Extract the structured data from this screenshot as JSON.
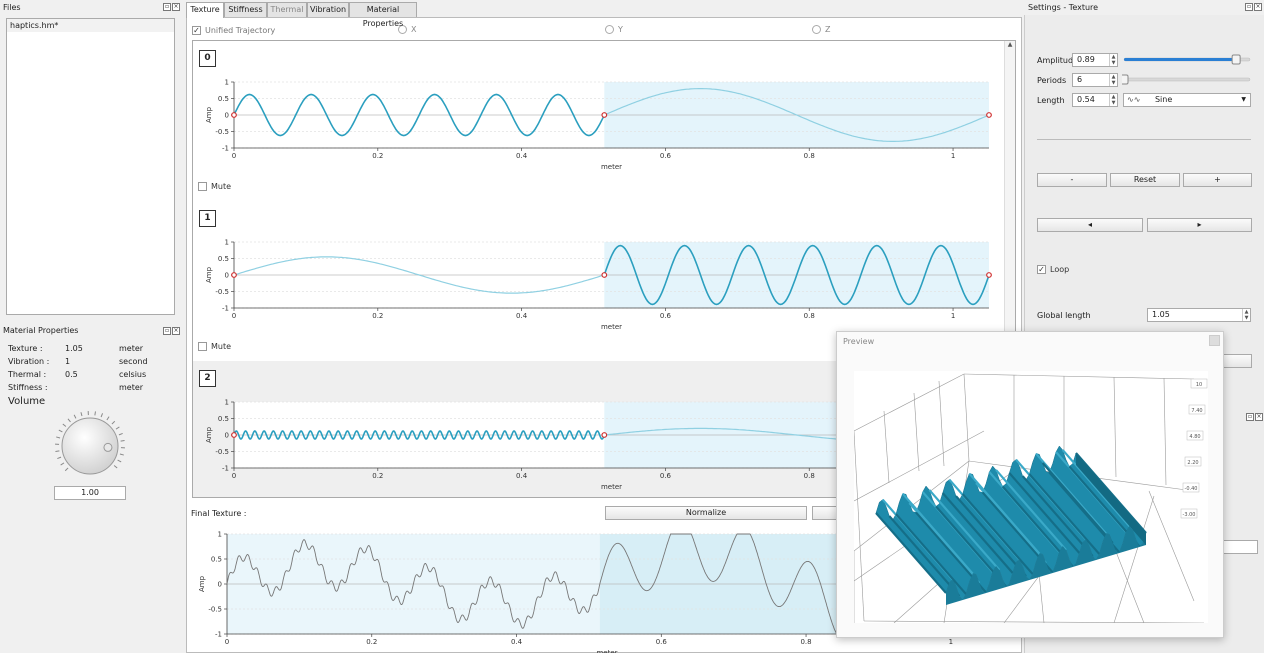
{
  "files_panel": {
    "title": "Files",
    "items": [
      "haptics.hm*"
    ]
  },
  "material_panel": {
    "title": "Material Properties",
    "rows": [
      {
        "label": "Texture :",
        "value": "1.05",
        "unit": "meter"
      },
      {
        "label": "Vibration :",
        "value": "1",
        "unit": "second"
      },
      {
        "label": "Thermal :",
        "value": "0.5",
        "unit": "celsius"
      },
      {
        "label": "Stiffness :",
        "value": "",
        "unit": "meter"
      }
    ],
    "volume_label": "Volume",
    "volume_value": "1.00",
    "volume_level": 0.85
  },
  "tabs": [
    "Texture",
    "Stiffness",
    "Thermal",
    "Vibration",
    "Material Properties"
  ],
  "trajectory": {
    "unified_label": "Unified Trajectory",
    "unified_checked": true,
    "axes": [
      "X",
      "Y",
      "Z"
    ]
  },
  "mute_label": "Mute",
  "chart_data": [
    {
      "type": "line",
      "title": "0",
      "xlabel": "meter",
      "ylabel": "Amp",
      "xlim": [
        0,
        1.05
      ],
      "ylim": [
        -1,
        1
      ],
      "xticks": [
        "0",
        "0.2",
        "0.4",
        "0.6",
        "0.8",
        "1"
      ],
      "yticks": [
        "1",
        "0.5",
        "0",
        "-0.5",
        "-1"
      ],
      "segments": [
        {
          "x0": 0,
          "x1": 0.515,
          "amp": 0.62,
          "cycles": 6
        },
        {
          "x0": 0.515,
          "x1": 1.05,
          "amp": 0.8,
          "cycles": 1
        }
      ],
      "highlight": [
        0.515,
        1.05
      ],
      "keypoints": [
        0,
        0.515,
        1.05
      ]
    },
    {
      "type": "line",
      "title": "1",
      "xlabel": "meter",
      "ylabel": "Amp",
      "xlim": [
        0,
        1.05
      ],
      "ylim": [
        -1,
        1
      ],
      "xticks": [
        "0",
        "0.2",
        "0.4",
        "0.6",
        "0.8",
        "1"
      ],
      "yticks": [
        "1",
        "0.5",
        "0",
        "-0.5",
        "-1"
      ],
      "segments": [
        {
          "x0": 0,
          "x1": 0.515,
          "amp": 0.55,
          "cycles": 1
        },
        {
          "x0": 0.515,
          "x1": 1.05,
          "amp": 0.89,
          "cycles": 6
        }
      ],
      "highlight": [
        0.515,
        1.05
      ],
      "keypoints": [
        0,
        0.515,
        1.05
      ]
    },
    {
      "type": "line",
      "title": "2",
      "xlabel": "meter",
      "ylabel": "Amp",
      "xlim": [
        0,
        1.05
      ],
      "ylim": [
        -1,
        1
      ],
      "xticks": [
        "0",
        "0.2",
        "0.4",
        "0.6",
        "0.8",
        "1"
      ],
      "yticks": [
        "1",
        "0.5",
        "0",
        "-0.5",
        "-1"
      ],
      "segments": [
        {
          "x0": 0,
          "x1": 0.515,
          "amp": 0.12,
          "cycles": 40
        },
        {
          "x0": 0.515,
          "x1": 1.05,
          "amp": 0.2,
          "cycles": 1
        }
      ],
      "highlight": [
        0.515,
        1.05
      ],
      "keypoints": [
        0,
        0.515
      ]
    },
    {
      "type": "line",
      "title": "Final Texture :",
      "xlabel": "meter",
      "ylabel": "Amp",
      "xlim": [
        0,
        1.05
      ],
      "ylim": [
        -1,
        1
      ],
      "xticks": [
        "0",
        "0.2",
        "0.4",
        "0.6",
        "0.8",
        "1"
      ],
      "yticks": [
        "1",
        "0.5",
        "0",
        "-0.5",
        "-1"
      ],
      "highlight": [
        0.515,
        1.05
      ]
    }
  ],
  "normalize_label": "Normalize",
  "settings": {
    "title": "Settings - Texture",
    "amplitude_label": "Amplitude",
    "amplitude_value": "0.89",
    "amplitude_level": 0.89,
    "periods_label": "Periods",
    "periods_value": "6",
    "periods_level": 0.0,
    "length_label": "Length",
    "length_value": "0.54",
    "waveform": "Sine",
    "minus_label": "-",
    "reset_label": "Reset",
    "plus_label": "+",
    "prev_label": "◂",
    "next_label": "▸",
    "loop_label": "Loop",
    "loop_checked": true,
    "global_length_label": "Global length",
    "global_length_value": "1.05"
  },
  "preview": {
    "title": "Preview",
    "axis_labels": [
      "10",
      "7.40",
      "4.80",
      "2.20",
      "-0.40",
      "-3.00"
    ]
  },
  "colors": {
    "wave": "#2b9fbf",
    "highlight": "#e4f4fb",
    "keypoint": "#d03030",
    "surface": "#1e8bab"
  }
}
